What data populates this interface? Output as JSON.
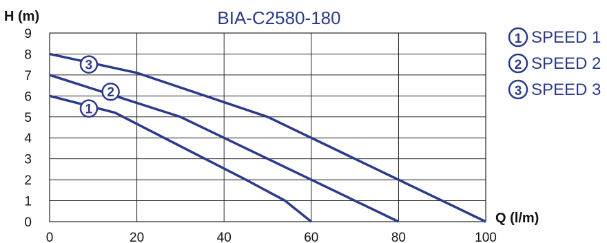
{
  "chart_data": {
    "type": "line",
    "title": "BIA-C2580-180",
    "xlabel": "Q (l/m)",
    "ylabel": "H (m)",
    "xlim": [
      0,
      100
    ],
    "ylim": [
      0,
      9
    ],
    "x_ticks": [
      "0",
      "20",
      "40",
      "60",
      "80",
      "100"
    ],
    "y_ticks": [
      "0",
      "1",
      "2",
      "3",
      "4",
      "5",
      "6",
      "7",
      "8",
      "9"
    ],
    "grid": true,
    "legend_placement": "right",
    "series_color": "#2b3a8c",
    "series": [
      {
        "name": "SPEED 1",
        "marker": "1",
        "marker_at": [
          9,
          5.4
        ],
        "points": [
          [
            0,
            6
          ],
          [
            15,
            5.2
          ],
          [
            45,
            2
          ],
          [
            54,
            1
          ],
          [
            60,
            0
          ]
        ]
      },
      {
        "name": "SPEED 2",
        "marker": "2",
        "marker_at": [
          14,
          6.2
        ],
        "points": [
          [
            0,
            7
          ],
          [
            30,
            5
          ],
          [
            60,
            2
          ],
          [
            80,
            0
          ]
        ]
      },
      {
        "name": "SPEED 3",
        "marker": "3",
        "marker_at": [
          9,
          7.5
        ],
        "points": [
          [
            0,
            8
          ],
          [
            20,
            7.1
          ],
          [
            50,
            5
          ],
          [
            100,
            0
          ]
        ]
      }
    ]
  }
}
